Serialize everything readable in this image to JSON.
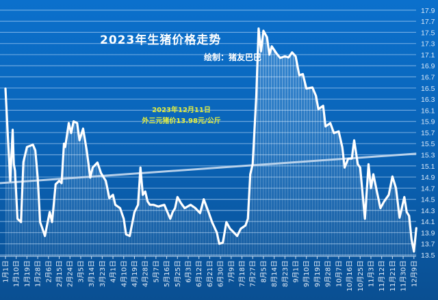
{
  "chart_data": {
    "type": "area",
    "title": "2023年生猪价格走势",
    "subtitle": "绘制：猪友巴巴",
    "annotation": [
      "2023年12月11日",
      "外三元猪价13.98元/公斤"
    ],
    "year": 2023,
    "ylim": [
      13.5,
      17.9
    ],
    "y_ticks": [
      "13.5",
      "13.7",
      "13.9",
      "14.1",
      "14.3",
      "14.5",
      "14.7",
      "14.9",
      "15.1",
      "15.3",
      "15.5",
      "15.7",
      "15.9",
      "16.1",
      "16.3",
      "16.5",
      "16.7",
      "16.9",
      "17.1",
      "17.3",
      "17.5",
      "17.7",
      "17.9"
    ],
    "y_axis_position": "right",
    "grid": true,
    "x_tick_labels": [
      "1月1日",
      "1月10日",
      "1月19日",
      "1月28日",
      "2月6日",
      "2月15日",
      "2月24日",
      "3月5日",
      "3月14日",
      "3月23日",
      "4月1日",
      "4月10日",
      "4月19日",
      "4月28日",
      "5月7日",
      "5月16日",
      "5月25日",
      "6月3日",
      "6月12日",
      "6月21日",
      "6月30日",
      "7月9日",
      "7月18日",
      "7月27日",
      "8月5日",
      "8月14日",
      "8月23日",
      "9月1日",
      "9月10日",
      "9月19日",
      "9月28日",
      "10月7日",
      "10月16日",
      "10月25日",
      "11月3日",
      "11月12日",
      "11月21日",
      "11月30日",
      "12月9日"
    ],
    "x_ticks_dates": [
      "01-01",
      "01-10",
      "01-19",
      "01-28",
      "02-06",
      "02-15",
      "02-24",
      "03-05",
      "03-14",
      "03-23",
      "04-01",
      "04-10",
      "04-19",
      "04-28",
      "05-07",
      "05-16",
      "05-25",
      "06-03",
      "06-12",
      "06-21",
      "06-30",
      "07-09",
      "07-18",
      "07-27",
      "08-05",
      "08-14",
      "08-23",
      "09-01",
      "09-10",
      "09-19",
      "09-28",
      "10-07",
      "10-16",
      "10-25",
      "11-03",
      "11-12",
      "11-21",
      "11-30",
      "12-09"
    ],
    "series": [
      {
        "x": [
          "01-01",
          "01-03",
          "01-05",
          "01-07",
          "01-08",
          "01-09",
          "01-11",
          "01-14",
          "01-16",
          "01-19",
          "01-24",
          "01-26",
          "01-28",
          "01-30",
          "02-01",
          "02-03",
          "02-07",
          "02-09",
          "02-12",
          "02-15",
          "02-17",
          "02-19",
          "02-20",
          "02-23",
          "02-25",
          "02-27",
          "03-02",
          "03-04",
          "03-07",
          "03-10",
          "03-13",
          "03-15",
          "03-19",
          "03-22",
          "03-26",
          "03-29",
          "04-01",
          "04-03",
          "04-07",
          "04-10",
          "04-12",
          "04-15",
          "04-19",
          "04-22",
          "04-24",
          "04-26",
          "04-28",
          "04-30",
          "05-02",
          "05-05",
          "05-09",
          "05-14",
          "05-19",
          "05-21",
          "05-23",
          "05-25",
          "05-28",
          "05-31",
          "06-05",
          "06-09",
          "06-13",
          "06-16",
          "06-20",
          "06-23",
          "06-27",
          "06-29",
          "07-02",
          "07-05",
          "07-08",
          "07-10",
          "07-14",
          "07-17",
          "07-21",
          "07-23",
          "07-25",
          "07-27",
          "07-30",
          "08-01",
          "08-03",
          "08-05",
          "08-08",
          "08-10",
          "08-12",
          "08-16",
          "08-19",
          "08-23",
          "08-26",
          "08-29",
          "09-01",
          "09-04",
          "09-07",
          "09-10",
          "09-15",
          "09-18",
          "09-20",
          "09-24",
          "09-26",
          "09-30",
          "10-03",
          "10-07",
          "10-10",
          "10-12",
          "10-15",
          "10-18",
          "10-20",
          "10-23",
          "10-25",
          "10-29",
          "11-01",
          "11-03",
          "11-05",
          "11-08",
          "11-11",
          "11-14",
          "11-18",
          "11-21",
          "11-24",
          "11-27",
          "12-01",
          "12-03",
          "12-05",
          "12-07",
          "12-09",
          "12-11"
        ],
        "values": [
          16.49,
          15.63,
          14.83,
          15.75,
          15.13,
          15.01,
          14.15,
          14.09,
          15.17,
          15.44,
          15.48,
          15.38,
          14.89,
          14.09,
          13.97,
          13.84,
          14.27,
          14.09,
          14.77,
          14.83,
          14.79,
          15.5,
          15.44,
          15.87,
          15.69,
          15.9,
          15.87,
          15.56,
          15.77,
          15.38,
          14.89,
          15.07,
          15.16,
          14.97,
          14.83,
          14.52,
          14.58,
          14.4,
          14.34,
          14.15,
          13.87,
          13.84,
          14.27,
          14.4,
          15.07,
          14.58,
          14.64,
          14.46,
          14.4,
          14.4,
          14.37,
          14.4,
          14.15,
          14.27,
          14.34,
          14.54,
          14.43,
          14.34,
          14.4,
          14.34,
          14.25,
          14.5,
          14.27,
          14.09,
          13.9,
          13.7,
          13.72,
          14.09,
          13.97,
          13.93,
          13.84,
          13.97,
          14.03,
          14.15,
          14.95,
          15.13,
          16.36,
          17.57,
          17.16,
          17.53,
          17.41,
          17.1,
          17.25,
          17.12,
          17.04,
          17.07,
          17.05,
          17.14,
          17.07,
          16.73,
          16.75,
          16.49,
          16.51,
          16.36,
          16.12,
          16.18,
          15.81,
          15.87,
          15.69,
          15.72,
          15.44,
          15.07,
          15.23,
          15.23,
          15.56,
          15.13,
          15.07,
          14.15,
          15.13,
          14.7,
          14.95,
          14.64,
          14.34,
          14.46,
          14.58,
          14.91,
          14.7,
          14.17,
          14.54,
          14.27,
          14.2,
          13.78,
          13.56,
          13.98
        ]
      }
    ],
    "trendline": {
      "type": "linear",
      "start": 14.79,
      "end": 15.32
    },
    "colors": {
      "background": "#0a65bb",
      "line": "#ffffff",
      "annotation": "#e8f03c",
      "trendline": "#c9dcf0"
    }
  }
}
